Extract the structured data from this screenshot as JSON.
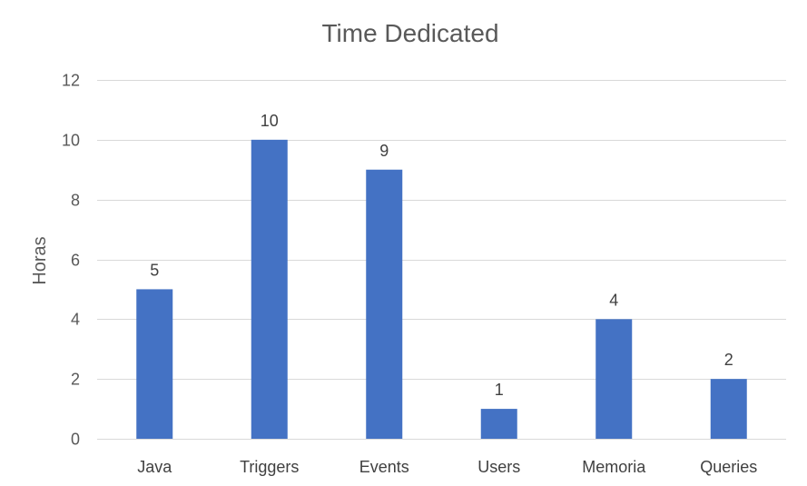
{
  "chart_data": {
    "type": "bar",
    "title": "Time Dedicated",
    "xlabel": "",
    "ylabel": "Horas",
    "categories": [
      "Java",
      "Triggers",
      "Events",
      "Users",
      "Memoria",
      "Queries"
    ],
    "values": [
      5,
      10,
      9,
      1,
      4,
      2
    ],
    "data_labels": [
      "5",
      "10",
      "9",
      "1",
      "4",
      "2"
    ],
    "ylim": [
      0,
      12
    ],
    "y_ticks": [
      0,
      2,
      4,
      6,
      8,
      10,
      12
    ],
    "y_tick_labels": [
      "0",
      "2",
      "4",
      "6",
      "8",
      "10",
      "12"
    ],
    "grid": true,
    "legend": "none",
    "colors": {
      "bar": "#4472C4"
    }
  }
}
